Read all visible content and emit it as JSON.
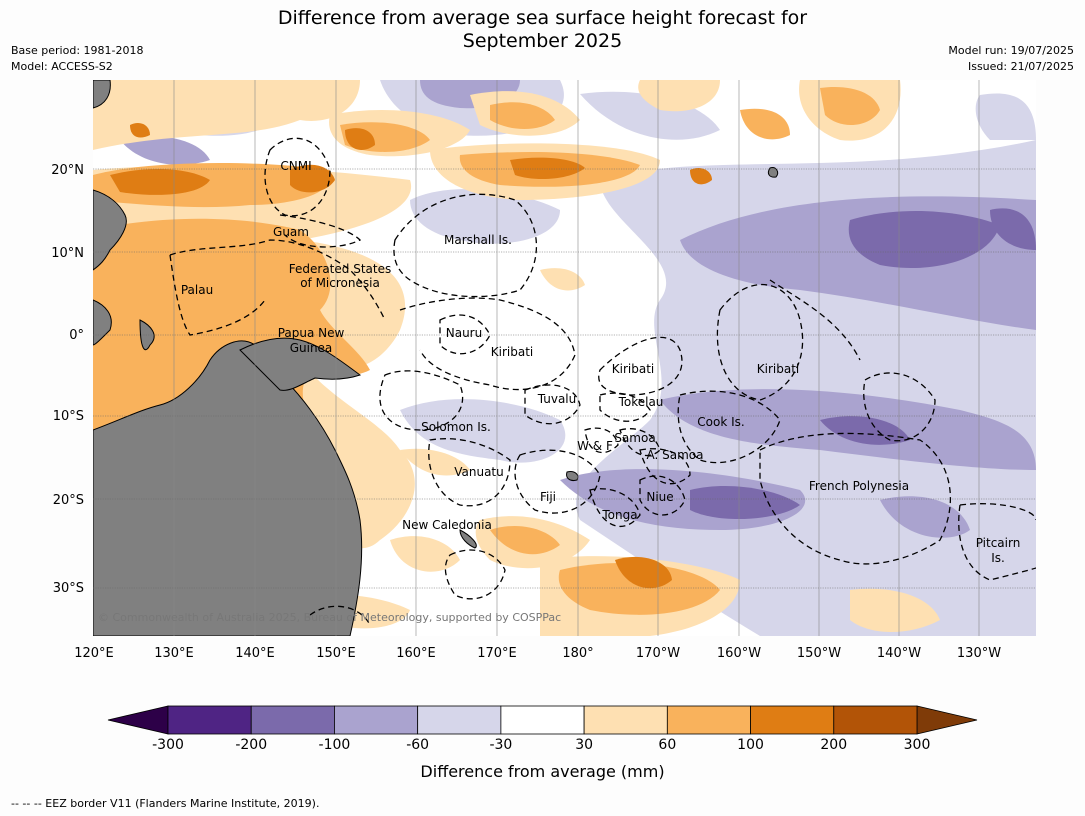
{
  "title_line1": "Difference from average sea surface height forecast for",
  "title_line2": "September 2025",
  "base_period": "Base period: 1981-2018",
  "model": "Model: ACCESS-S2",
  "model_run": "Model run: 19/07/2025",
  "issued": "Issued: 21/07/2025",
  "lat_ticks": [
    "20°N",
    "10°N",
    "0°",
    "10°S",
    "20°S",
    "30°S"
  ],
  "lon_ticks": [
    "120°E",
    "130°E",
    "140°E",
    "150°E",
    "160°E",
    "170°E",
    "180°",
    "170°W",
    "160°W",
    "150°W",
    "140°W",
    "130°W"
  ],
  "places": {
    "cnmi": "CNMI",
    "guam": "Guam",
    "marshall": "Marshall Is.",
    "fsm1": "Federated States",
    "fsm2": "of Micronesia",
    "palau": "Palau",
    "nauru": "Nauru",
    "png1": "Papua New",
    "png2": "Guinea",
    "kiribati_w": "Kiribati",
    "kiribati_c": "Kiribati",
    "kiribati_e": "Kiribati",
    "tuvalu": "Tuvalu",
    "tokelau": "Tokelau",
    "cook": "Cook Is.",
    "solomon": "Solomon Is.",
    "wf": "W & F",
    "samoa": "Samoa",
    "asamoa": "A. Samoa",
    "vanuatu": "Vanuatu",
    "fiji": "Fiji",
    "niue": "Niue",
    "french_poly": "French Polynesia",
    "tonga": "Tonga",
    "new_cal": "New Caledonia",
    "pitcairn1": "Pitcairn",
    "pitcairn2": "Is."
  },
  "copyright": "© Commonwealth of Australia 2025, Bureau of Meteorology, supported by COSPPac",
  "colorbar": {
    "labels": [
      "-300",
      "-200",
      "-100",
      "-60",
      "-30",
      "30",
      "60",
      "100",
      "200",
      "300"
    ],
    "colors": [
      "#4f2484",
      "#7b6aab",
      "#aaa3cf",
      "#d6d6ea",
      "#ffffff",
      "#fee0b2",
      "#f9b25c",
      "#df7d14",
      "#b25407"
    ],
    "low_extend": "#2d0048",
    "high_extend": "#7f3b08",
    "title": "Difference from average (mm)"
  },
  "footer": "--  --  -- EEZ border V11 (Flanders Marine Institute, 2019).",
  "land_color": "#808080"
}
